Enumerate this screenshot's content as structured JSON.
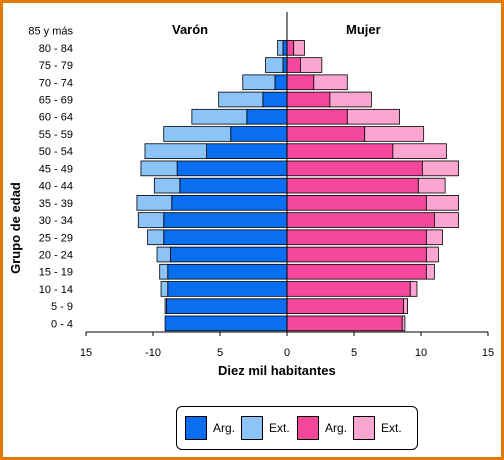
{
  "chart_data": {
    "type": "bar",
    "orientation": "horizontal-pyramid",
    "title_left": "Varón",
    "title_right": "Mujer",
    "xlabel": "Diez mil habitantes",
    "ylabel": "Grupo de edad",
    "xlim": [
      -15,
      15
    ],
    "xticks": [
      -15,
      -10,
      -5,
      0,
      5,
      10,
      15
    ],
    "xtick_labels": [
      "15",
      "-10",
      "5",
      "0",
      "5",
      "10",
      "15"
    ],
    "categories": [
      "0 - 4",
      "5 - 9",
      "10 - 14",
      "15 - 19",
      "20 - 24",
      "25 - 29",
      "30 - 34",
      "35 - 39",
      "40 - 44",
      "45 - 49",
      "50 - 54",
      "55 - 59",
      "60 - 64",
      "65 - 69",
      "70 - 74",
      "75 - 79",
      "80 - 84",
      "85 y  más"
    ],
    "series": [
      {
        "name": "Arg.",
        "side": "male",
        "color": "#0a6ef0",
        "values": [
          9.1,
          9.0,
          8.9,
          8.9,
          8.7,
          9.2,
          9.2,
          8.6,
          8.0,
          8.2,
          6.0,
          4.2,
          3.0,
          1.8,
          0.9,
          0.3,
          0.3,
          0.0
        ]
      },
      {
        "name": "Ext.",
        "side": "male",
        "color": "#8dc4f7",
        "values": [
          0.0,
          0.1,
          0.5,
          0.6,
          1.0,
          1.2,
          1.9,
          2.6,
          1.9,
          2.7,
          4.6,
          5.0,
          4.1,
          3.3,
          2.4,
          1.3,
          0.4,
          0.0
        ]
      },
      {
        "name": "Arg.",
        "side": "female",
        "color": "#f5479b",
        "values": [
          8.6,
          8.7,
          9.2,
          10.4,
          10.4,
          10.4,
          11.0,
          10.4,
          9.8,
          10.1,
          7.9,
          5.8,
          4.5,
          3.2,
          2.0,
          1.0,
          0.5,
          0.0
        ]
      },
      {
        "name": "Ext.",
        "side": "female",
        "color": "#fba6d0",
        "values": [
          0.2,
          0.3,
          0.5,
          0.6,
          0.9,
          1.2,
          1.8,
          2.4,
          2.0,
          2.7,
          4.0,
          4.4,
          3.9,
          3.1,
          2.5,
          1.6,
          0.8,
          0.0
        ]
      }
    ],
    "legend_position": "bottom",
    "grid": false
  },
  "legend": [
    {
      "label": "Arg.",
      "color": "#0a6ef0"
    },
    {
      "label": "Ext.",
      "color": "#8dc4f7"
    },
    {
      "label": "Arg.",
      "color": "#f5479b"
    },
    {
      "label": "Ext.",
      "color": "#fba6d0"
    }
  ]
}
